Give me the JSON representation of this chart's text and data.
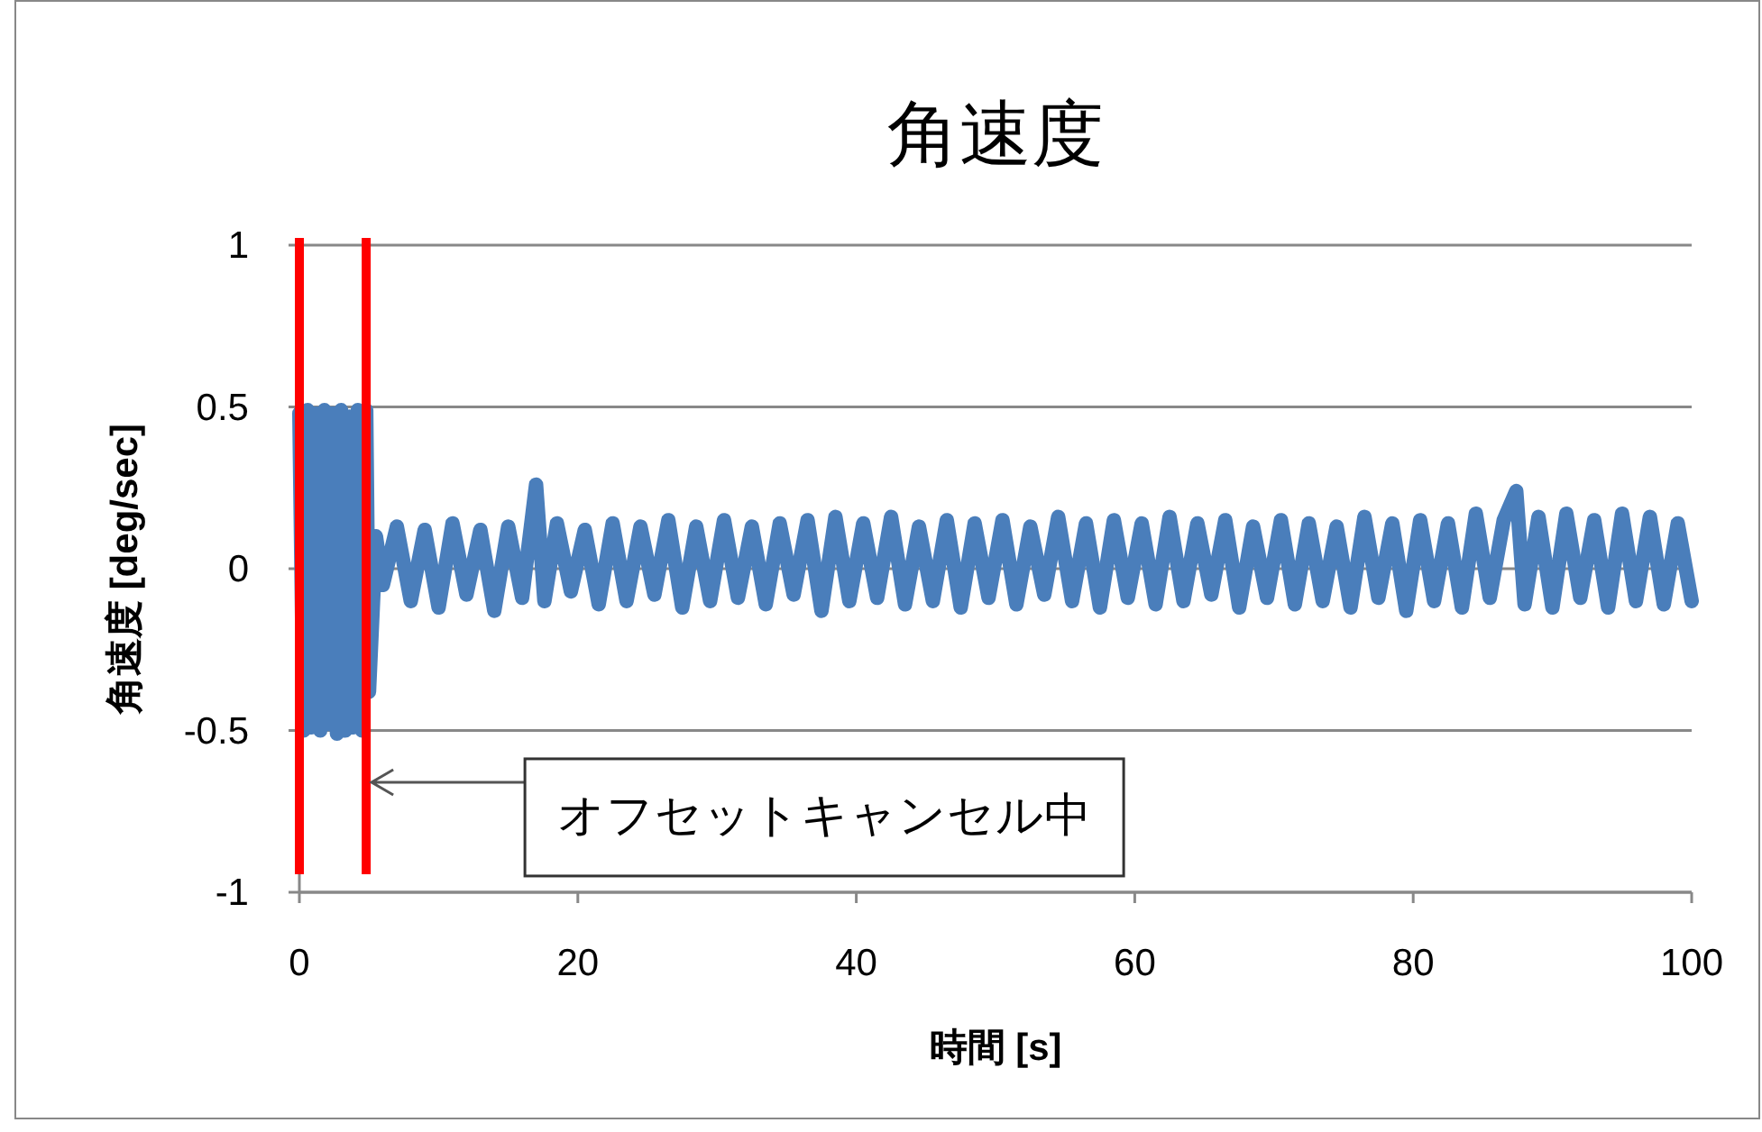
{
  "chart_data": {
    "type": "line",
    "title": "角速度",
    "xlabel": "時間 [s]",
    "ylabel": "角速度 [deg/sec]",
    "xlim": [
      0,
      100
    ],
    "xticks": [
      0,
      20,
      40,
      60,
      80,
      100
    ],
    "ylim": [
      -1,
      1
    ],
    "yticks": [
      -1,
      -0.5,
      0,
      0.5,
      1
    ],
    "grid": "y",
    "marker": "none",
    "line_style": "solid",
    "ref_lines": [
      {
        "axis": "x",
        "value": 0,
        "color": "#ff0000"
      },
      {
        "axis": "x",
        "value": 4.8,
        "color": "#ff0000"
      }
    ],
    "annotations": [
      {
        "text": "オフセットキャンセル中",
        "x": 4.8,
        "y": -0.66
      }
    ],
    "series": [
      {
        "color": "#4a7ebb",
        "x": [
          0,
          0.3,
          0.6,
          0.9,
          1.2,
          1.5,
          1.8,
          2.1,
          2.4,
          2.7,
          3.0,
          3.3,
          3.6,
          3.9,
          4.2,
          4.5,
          4.8,
          5.0,
          5.5,
          6,
          7,
          8,
          9,
          10,
          11,
          12,
          13,
          14,
          15,
          16,
          17,
          17.6,
          18.5,
          19.5,
          20.5,
          21.5,
          22.5,
          23.5,
          24.5,
          25.5,
          26.5,
          27.5,
          28.5,
          29.5,
          30.5,
          31.5,
          32.5,
          33.5,
          34.5,
          35.5,
          36.5,
          37.5,
          38.5,
          39.5,
          40.5,
          41.5,
          42.5,
          43.5,
          44.5,
          45.5,
          46.5,
          47.5,
          48.5,
          49.5,
          50.5,
          51.5,
          52.5,
          53.5,
          54.5,
          55.5,
          56.5,
          57.5,
          58.5,
          59.5,
          60.5,
          61.5,
          62.5,
          63.5,
          64.5,
          65.5,
          66.5,
          67.5,
          68.5,
          69.5,
          70.5,
          71.5,
          72.5,
          73.5,
          74.5,
          75.5,
          76.5,
          77.5,
          78.5,
          79.5,
          80.5,
          81.5,
          82.5,
          83.5,
          84.5,
          85.5,
          86.5,
          87.4,
          88,
          89,
          90,
          91,
          92,
          93,
          94,
          95,
          96,
          97,
          98,
          99,
          100
        ],
        "values": [
          0.48,
          -0.5,
          0.49,
          -0.49,
          0.48,
          -0.5,
          0.49,
          -0.48,
          0.48,
          -0.51,
          0.49,
          -0.5,
          0.47,
          -0.49,
          0.49,
          -0.5,
          0.49,
          -0.38,
          0.1,
          -0.05,
          0.13,
          -0.1,
          0.12,
          -0.12,
          0.14,
          -0.08,
          0.12,
          -0.13,
          0.13,
          -0.09,
          0.26,
          -0.1,
          0.14,
          -0.07,
          0.12,
          -0.11,
          0.14,
          -0.1,
          0.13,
          -0.08,
          0.15,
          -0.12,
          0.13,
          -0.1,
          0.15,
          -0.09,
          0.13,
          -0.11,
          0.14,
          -0.08,
          0.15,
          -0.13,
          0.16,
          -0.1,
          0.14,
          -0.09,
          0.16,
          -0.11,
          0.13,
          -0.1,
          0.15,
          -0.12,
          0.14,
          -0.09,
          0.15,
          -0.11,
          0.13,
          -0.08,
          0.16,
          -0.1,
          0.14,
          -0.12,
          0.15,
          -0.09,
          0.14,
          -0.11,
          0.16,
          -0.1,
          0.14,
          -0.08,
          0.15,
          -0.12,
          0.13,
          -0.09,
          0.15,
          -0.11,
          0.14,
          -0.1,
          0.13,
          -0.12,
          0.16,
          -0.09,
          0.14,
          -0.13,
          0.15,
          -0.1,
          0.14,
          -0.12,
          0.17,
          -0.09,
          0.15,
          0.24,
          -0.11,
          0.16,
          -0.12,
          0.17,
          -0.09,
          0.15,
          -0.12,
          0.17,
          -0.1,
          0.16,
          -0.11,
          0.14,
          -0.1
        ]
      }
    ]
  }
}
